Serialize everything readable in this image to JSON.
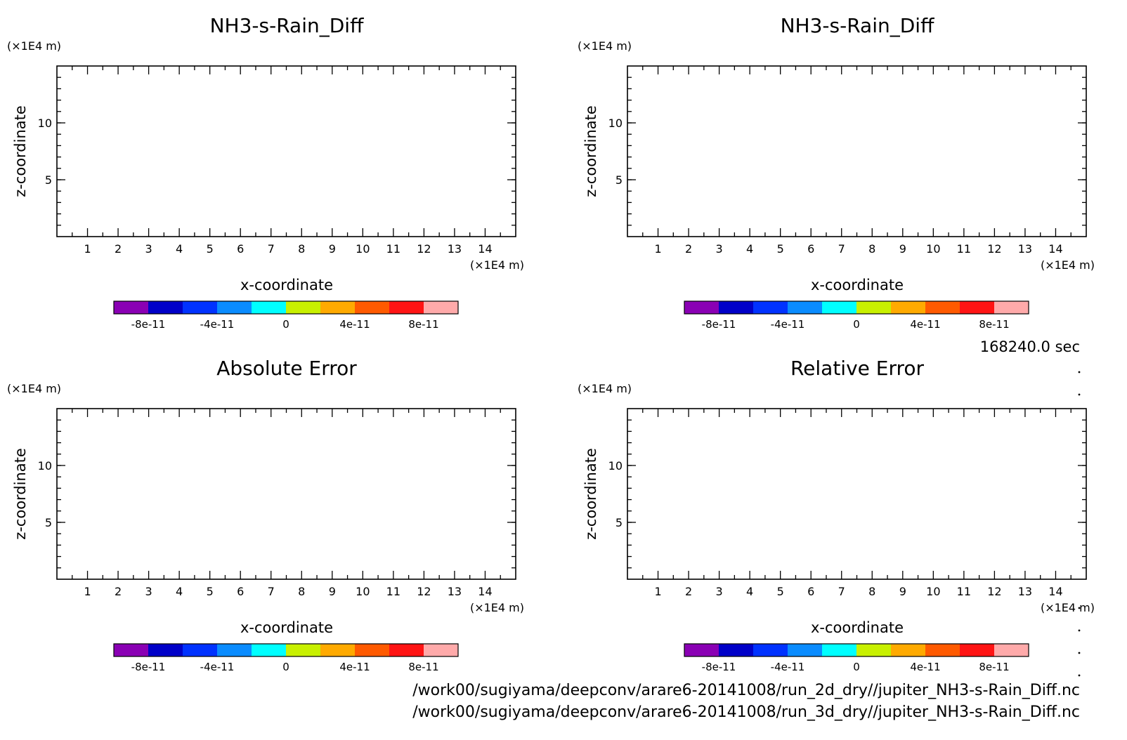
{
  "time_label": "168240.0 sec",
  "files": [
    "/work00/sugiyama/deepconv/arare6-20141008/run_2d_dry//jupiter_NH3-s-Rain_Diff.nc",
    "/work00/sugiyama/deepconv/arare6-20141008/run_3d_dry//jupiter_NH3-s-Rain_Diff.nc"
  ],
  "colorbar": {
    "colors": [
      "#8a00b4",
      "#0000c8",
      "#0032ff",
      "#0a8cff",
      "#00ffff",
      "#c8f000",
      "#ffaa00",
      "#ff5a00",
      "#ff1414",
      "#ffaaaa"
    ],
    "tick_values": [
      -8e-11,
      -4e-11,
      0,
      4e-11,
      8e-11
    ],
    "tick_labels": [
      "-8e-11",
      "-4e-11",
      "0",
      "4e-11",
      "8e-11"
    ],
    "range": [
      -1e-10,
      1e-10
    ]
  },
  "chart_data": [
    {
      "type": "heatmap",
      "title": "NH3-s-Rain_Diff",
      "xlabel": "x-coordinate",
      "ylabel": "z-coordinate",
      "x_unit": "(×1E4 m)",
      "y_unit": "(×1E4 m)",
      "xlim": [
        0,
        15
      ],
      "ylim": [
        0,
        15
      ],
      "x_ticks": [
        1,
        2,
        3,
        4,
        5,
        6,
        7,
        8,
        9,
        10,
        11,
        12,
        13,
        14
      ],
      "y_ticks": [
        5,
        10
      ],
      "values": []
    },
    {
      "type": "heatmap",
      "title": "NH3-s-Rain_Diff",
      "xlabel": "x-coordinate",
      "ylabel": "z-coordinate",
      "x_unit": "(×1E4 m)",
      "y_unit": "(×1E4 m)",
      "xlim": [
        0,
        15
      ],
      "ylim": [
        0,
        15
      ],
      "x_ticks": [
        1,
        2,
        3,
        4,
        5,
        6,
        7,
        8,
        9,
        10,
        11,
        12,
        13,
        14
      ],
      "y_ticks": [
        5,
        10
      ],
      "values": []
    },
    {
      "type": "heatmap",
      "title": "Absolute Error",
      "xlabel": "x-coordinate",
      "ylabel": "z-coordinate",
      "x_unit": "(×1E4 m)",
      "y_unit": "(×1E4 m)",
      "xlim": [
        0,
        15
      ],
      "ylim": [
        0,
        15
      ],
      "x_ticks": [
        1,
        2,
        3,
        4,
        5,
        6,
        7,
        8,
        9,
        10,
        11,
        12,
        13,
        14
      ],
      "y_ticks": [
        5,
        10
      ],
      "values": []
    },
    {
      "type": "heatmap",
      "title": "Relative Error",
      "xlabel": "x-coordinate",
      "ylabel": "z-coordinate",
      "x_unit": "(×1E4 m)",
      "y_unit": "(×1E4 m)",
      "xlim": [
        0,
        15
      ],
      "ylim": [
        0,
        15
      ],
      "x_ticks": [
        1,
        2,
        3,
        4,
        5,
        6,
        7,
        8,
        9,
        10,
        11,
        12,
        13,
        14
      ],
      "y_ticks": [
        5,
        10
      ],
      "values": []
    }
  ]
}
